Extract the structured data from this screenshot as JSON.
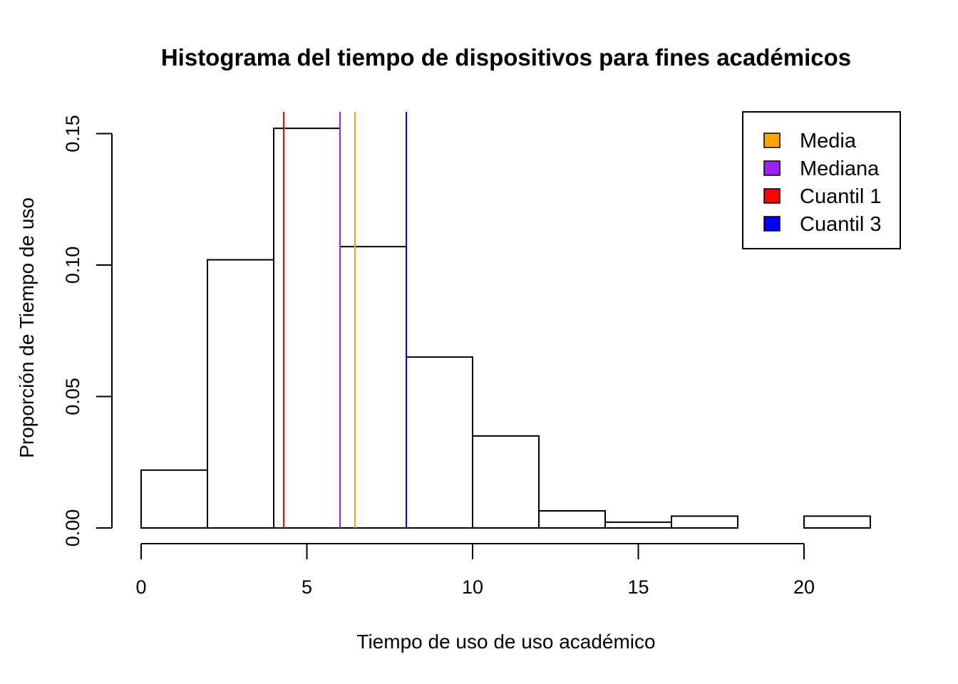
{
  "chart_data": {
    "type": "bar",
    "title": "Histograma del tiempo de dispositivos para fines académicos",
    "xlabel": "Tiempo de uso de uso académico",
    "ylabel": "Proporción de Tiempo de uso",
    "xlim": [
      0,
      22
    ],
    "ylim": [
      0,
      0.15
    ],
    "x_ticks": [
      0,
      5,
      10,
      15,
      20
    ],
    "x_tick_labels": [
      "0",
      "5",
      "10",
      "15",
      "20"
    ],
    "y_ticks": [
      0,
      0.05,
      0.1,
      0.15
    ],
    "y_tick_labels": [
      "0.00",
      "0.05",
      "0.10",
      "0.15"
    ],
    "bins": [
      {
        "start": 0,
        "end": 2,
        "value": 0.022
      },
      {
        "start": 2,
        "end": 4,
        "value": 0.102
      },
      {
        "start": 4,
        "end": 6,
        "value": 0.152
      },
      {
        "start": 6,
        "end": 8,
        "value": 0.107
      },
      {
        "start": 8,
        "end": 10,
        "value": 0.065
      },
      {
        "start": 10,
        "end": 12,
        "value": 0.035
      },
      {
        "start": 12,
        "end": 14,
        "value": 0.0065
      },
      {
        "start": 14,
        "end": 16,
        "value": 0.0022
      },
      {
        "start": 16,
        "end": 18,
        "value": 0.0045
      },
      {
        "start": 18,
        "end": 20,
        "value": 0
      },
      {
        "start": 20,
        "end": 22,
        "value": 0.0045
      }
    ],
    "reference_lines": [
      {
        "name": "Cuantil 1",
        "x": 4.3,
        "color": "#ff0000"
      },
      {
        "name": "Mediana",
        "x": 6.0,
        "color": "#a020f0"
      },
      {
        "name": "Media",
        "x": 6.45,
        "color": "#ffa500"
      },
      {
        "name": "Cuantil 3",
        "x": 8.0,
        "color": "#0000ff"
      }
    ],
    "legend": {
      "placement": "top-right",
      "entries": [
        {
          "label": "Media",
          "color": "#ffa500"
        },
        {
          "label": "Mediana",
          "color": "#a020f0"
        },
        {
          "label": "Cuantil 1",
          "color": "#ff0000"
        },
        {
          "label": "Cuantil 3",
          "color": "#0000ff"
        }
      ]
    },
    "grid": false
  }
}
